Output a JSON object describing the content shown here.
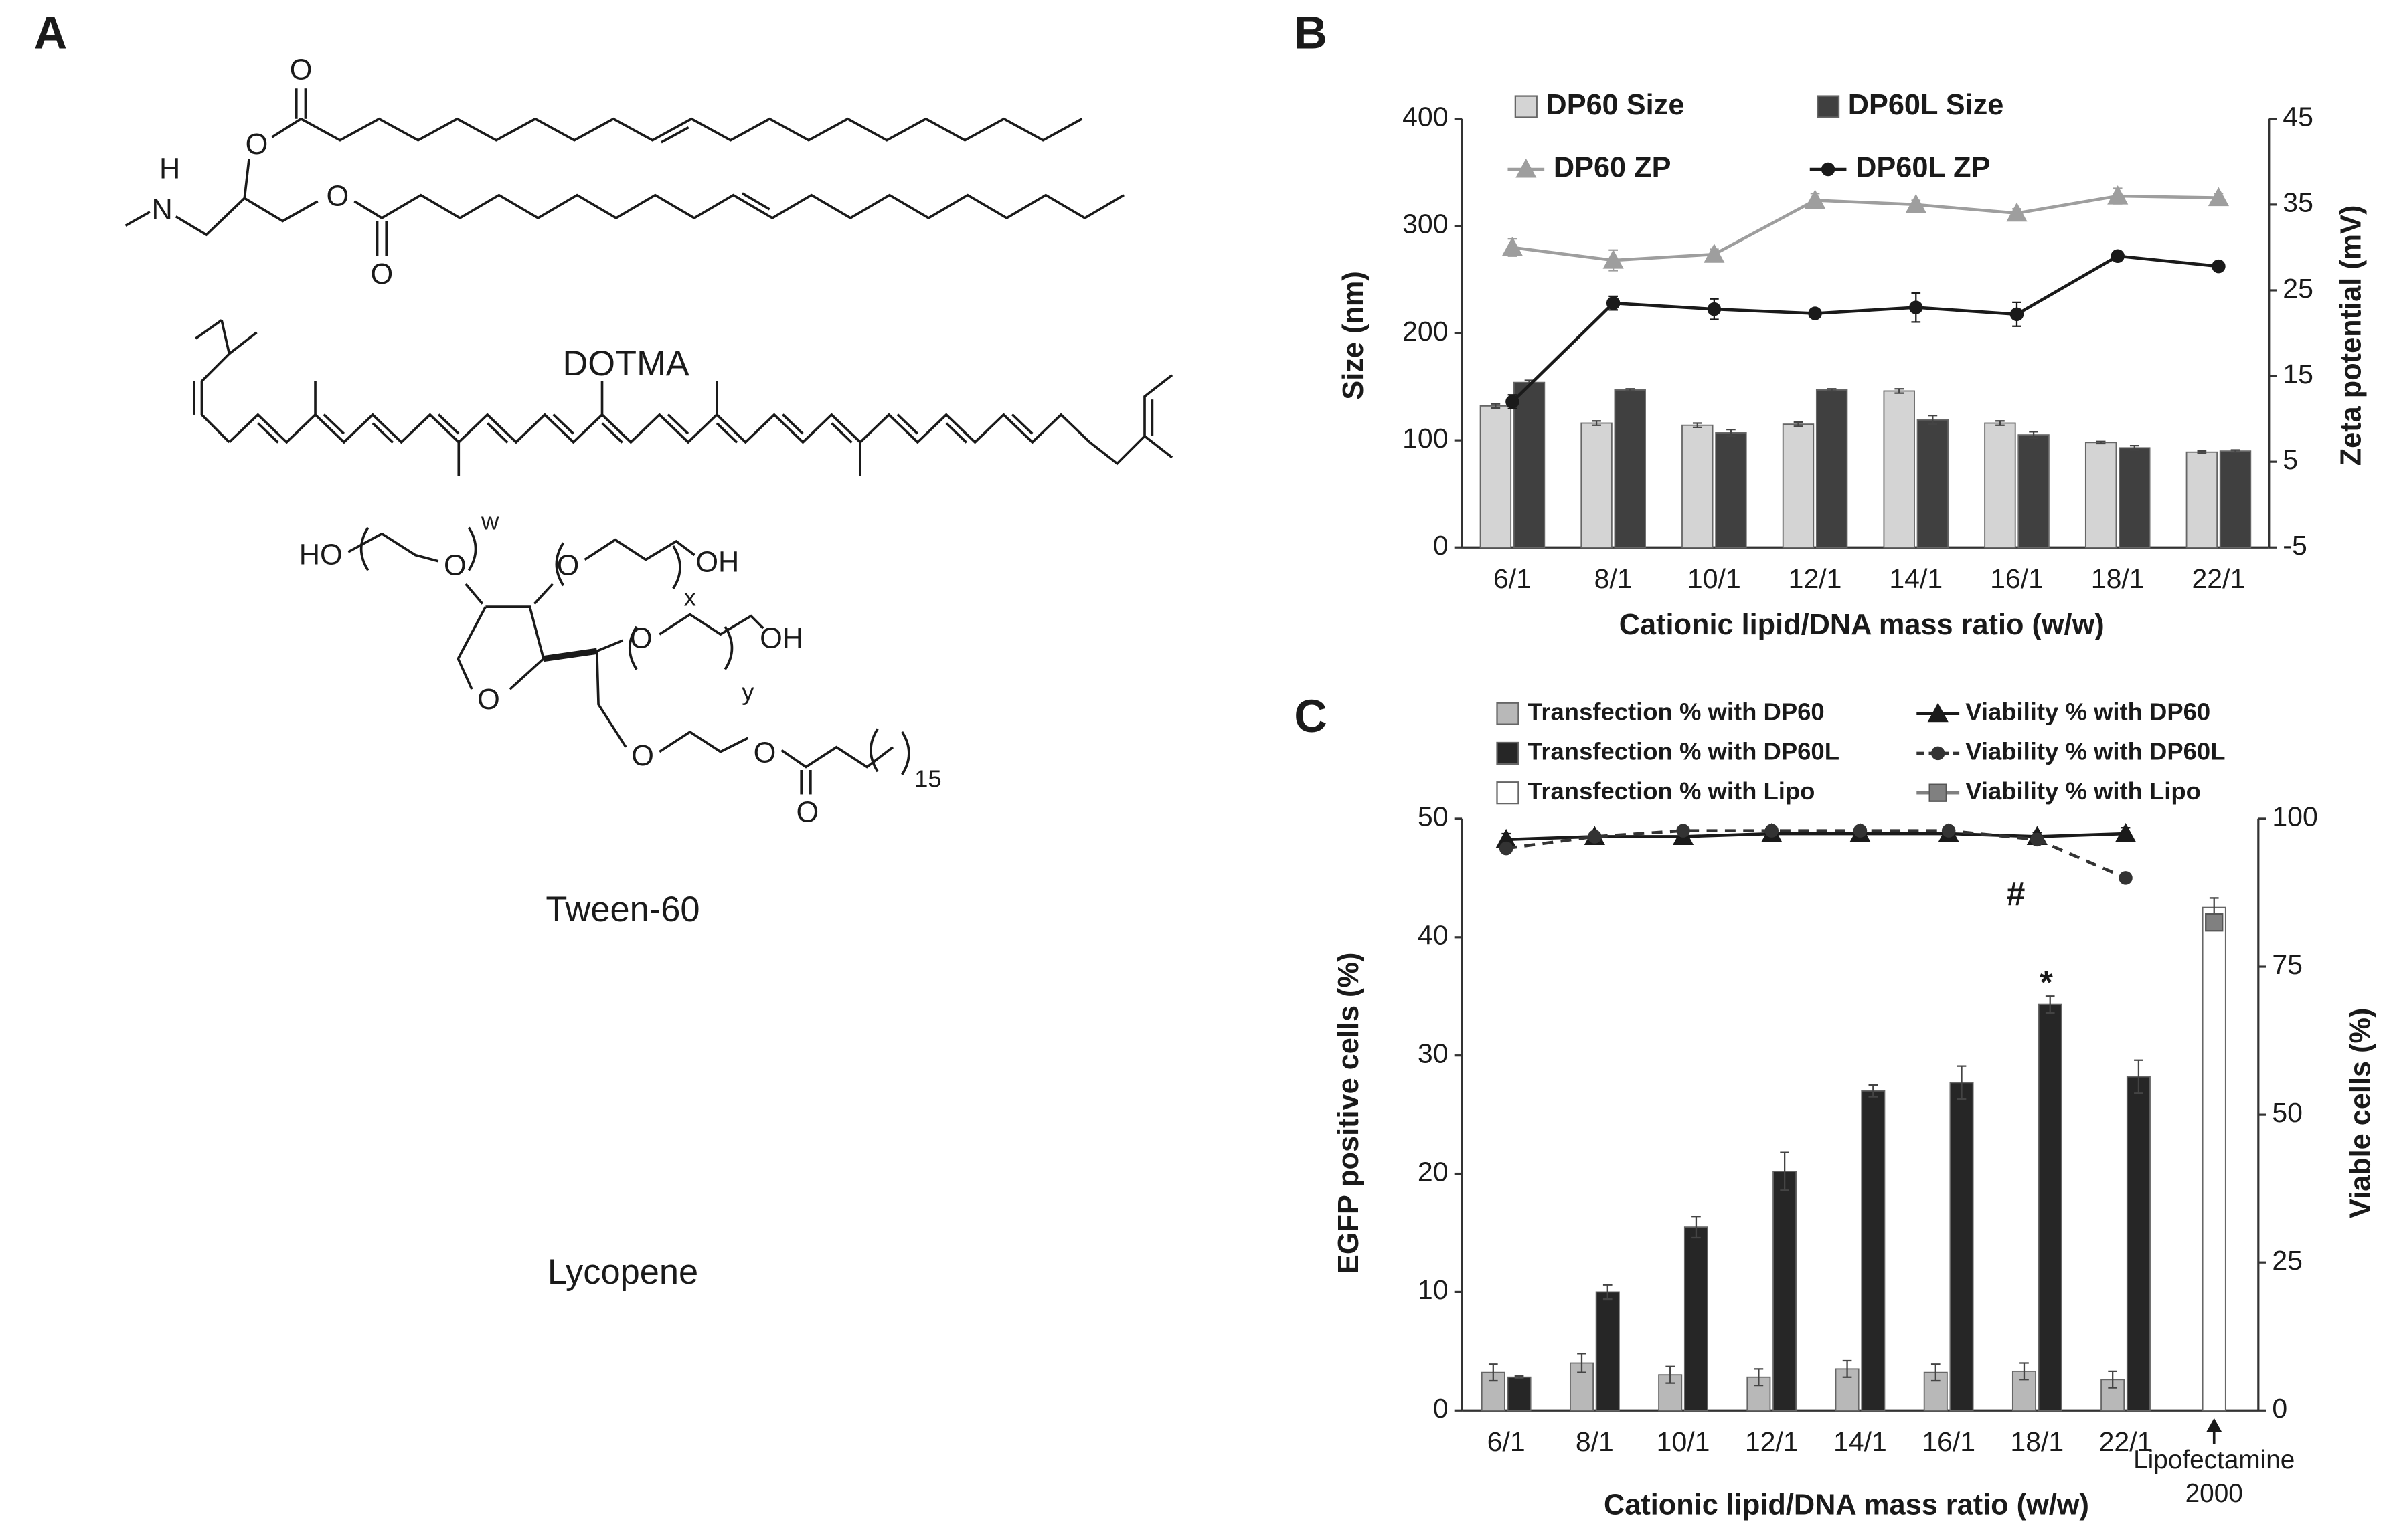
{
  "panels": [
    "A",
    "B",
    "C"
  ],
  "structures": [
    {
      "name": "DOTMA",
      "atom_labels": [
        "O",
        "O",
        "H",
        "N",
        "O",
        "O"
      ]
    },
    {
      "name": "Tween-60",
      "atom_labels": [
        "HO",
        "O",
        "w",
        "O",
        "x",
        "OH",
        "O",
        "y",
        "OH",
        "O",
        "O",
        "O",
        "O",
        "15"
      ]
    },
    {
      "name": "Lycopene"
    }
  ],
  "chart_data": [
    {
      "type": "bar",
      "xlabel": "Cationic lipid/DNA mass ratio (w/w)",
      "ylabel": "Size (nm)",
      "y2label": "Zeta potential (mV)",
      "categories": [
        "6/1",
        "8/1",
        "10/1",
        "12/1",
        "14/1",
        "16/1",
        "18/1",
        "22/1"
      ],
      "ylim": [
        0,
        400
      ],
      "yticks": [
        0,
        100,
        200,
        300,
        400
      ],
      "y2lim": [
        -5,
        45
      ],
      "y2ticks": [
        -5,
        5,
        15,
        25,
        35,
        45
      ],
      "series": [
        {
          "name": "DP60 Size",
          "type": "bar",
          "color": "#d4d4d4",
          "values": [
            132,
            116,
            114,
            115,
            146,
            116,
            98,
            89
          ],
          "errors": [
            2,
            2,
            2,
            2,
            2,
            2,
            1,
            1
          ]
        },
        {
          "name": "DP60L Size",
          "type": "bar",
          "color": "#404040",
          "values": [
            154,
            147,
            107,
            147,
            119,
            105,
            93,
            90
          ],
          "errors": [
            2,
            1,
            3,
            1,
            4,
            3,
            2,
            1
          ]
        },
        {
          "name": "DP60 ZP",
          "type": "line",
          "axis": "y2",
          "color": "#9e9e9e",
          "marker": "triangle",
          "values": [
            30,
            28.5,
            29.2,
            35.5,
            35,
            34,
            36,
            35.8
          ],
          "errors": [
            1,
            1.2,
            0.6,
            0.8,
            0.5,
            0.5,
            0.9,
            0.5
          ]
        },
        {
          "name": "DP60L ZP",
          "type": "line",
          "axis": "y2",
          "color": "#1a1a1a",
          "marker": "circle",
          "values": [
            12,
            23.5,
            22.8,
            22.3,
            23,
            22.2,
            29,
            27.8
          ],
          "errors": [
            0.8,
            0.8,
            1.2,
            0.3,
            1.7,
            1.4,
            0.3,
            0.3
          ]
        }
      ]
    },
    {
      "type": "bar",
      "xlabel": "Cationic lipid/DNA mass ratio (w/w)",
      "ylabel": "EGFP positive cells (%)",
      "y2label": "Viable cells (%)",
      "categories": [
        "6/1",
        "8/1",
        "10/1",
        "12/1",
        "14/1",
        "16/1",
        "18/1",
        "22/1",
        "Lipofectamine 2000"
      ],
      "ylim": [
        0,
        50
      ],
      "yticks": [
        0,
        10,
        20,
        30,
        40,
        50
      ],
      "y2lim": [
        0,
        100
      ],
      "y2ticks": [
        0,
        25,
        50,
        75,
        100
      ],
      "annotations": [
        {
          "text": "#"
        },
        {
          "text": "*"
        }
      ],
      "series": [
        {
          "name": "Transfection % with DP60",
          "type": "bar",
          "color": "#b8b8b8",
          "values": [
            3.2,
            4,
            3,
            2.8,
            3.5,
            3.2,
            3.3,
            2.6,
            null
          ],
          "errors": [
            0.7,
            0.8,
            0.7,
            0.7,
            0.7,
            0.7,
            0.7,
            0.7,
            null
          ]
        },
        {
          "name": "Transfection % with DP60L",
          "type": "bar",
          "color": "#262626",
          "values": [
            2.8,
            10,
            15.5,
            20.2,
            27,
            27.7,
            34.3,
            28.2,
            null
          ],
          "errors": [
            0.1,
            0.6,
            0.9,
            1.6,
            0.5,
            1.4,
            0.7,
            1.4,
            null
          ]
        },
        {
          "name": "Transfection % with Lipo",
          "type": "bar",
          "color": "#ffffff",
          "values": [
            null,
            null,
            null,
            null,
            null,
            null,
            null,
            null,
            42.5
          ],
          "errors": [
            null,
            null,
            null,
            null,
            null,
            null,
            null,
            null,
            0.8
          ]
        },
        {
          "name": "Viability % with DP60",
          "type": "line",
          "axis": "y2",
          "color": "#1a1a1a",
          "marker": "triangle",
          "values": [
            96.5,
            97,
            97,
            97.5,
            97.5,
            97.5,
            97,
            97.5,
            null
          ],
          "errors": [
            1,
            0.5,
            0.7,
            0.5,
            0.5,
            0.5,
            0.7,
            1,
            null
          ]
        },
        {
          "name": "Viability % with DP60L",
          "type": "line",
          "axis": "y2",
          "color": "#333333",
          "marker": "circle",
          "dash": true,
          "values": [
            95,
            97,
            98,
            98,
            98,
            98,
            96.5,
            90,
            null
          ]
        },
        {
          "name": "Viability % with Lipo",
          "type": "line",
          "axis": "y2",
          "color": "#808080",
          "marker": "square",
          "values": [
            null,
            null,
            null,
            null,
            null,
            null,
            null,
            null,
            82.5
          ]
        }
      ]
    }
  ]
}
